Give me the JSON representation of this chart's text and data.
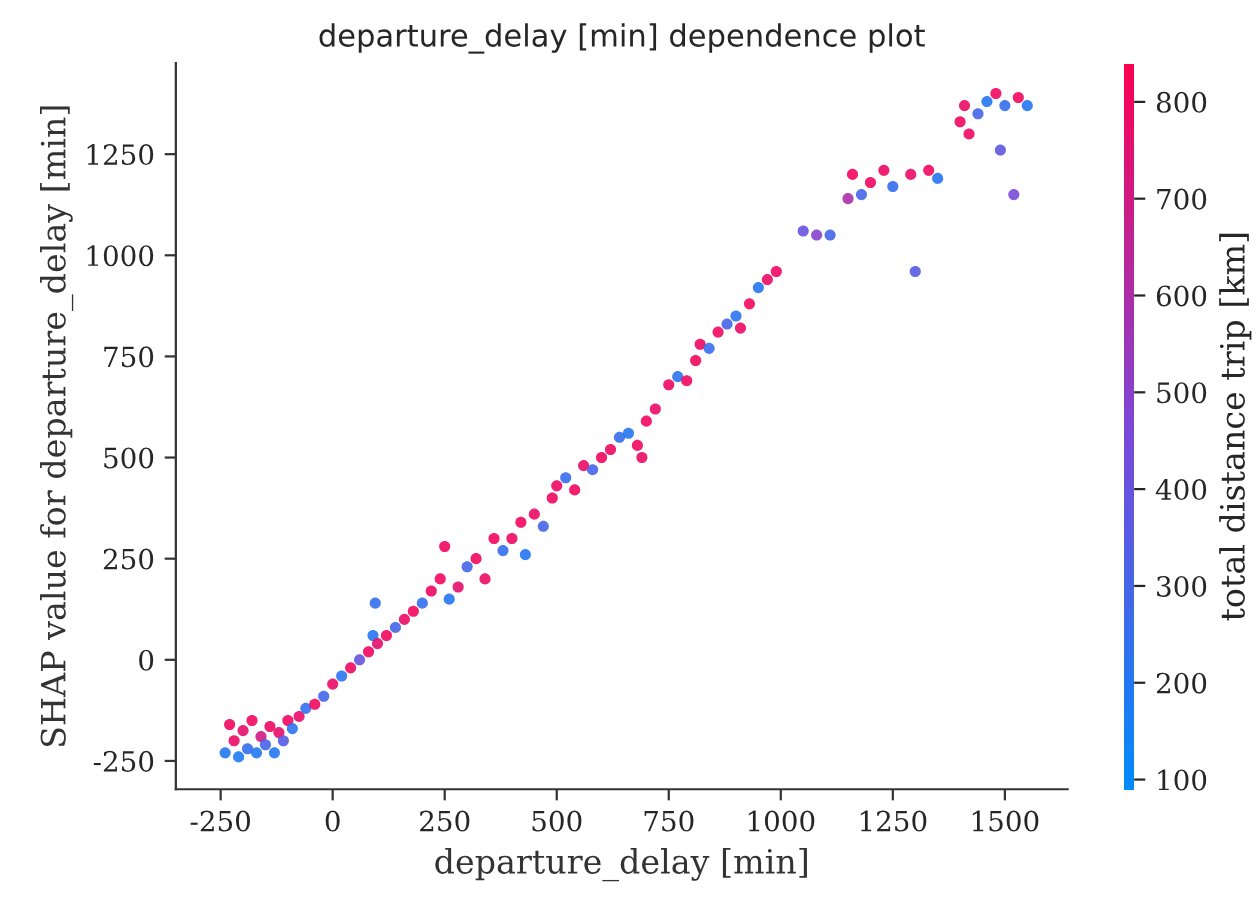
{
  "chart_data": {
    "type": "scatter",
    "title": "departure_delay [min] dependence plot",
    "xlabel": "departure_delay [min]",
    "ylabel": "SHAP value for departure_delay [min]",
    "clabel": "total distance trip [km]",
    "xlim": [
      -350,
      1640
    ],
    "ylim": [
      -320,
      1475
    ],
    "xticks": [
      -250,
      0,
      250,
      500,
      750,
      1000,
      1250,
      1500
    ],
    "yticks": [
      -250,
      0,
      250,
      500,
      750,
      1000,
      1250
    ],
    "clim": [
      90,
      840
    ],
    "cticks": [
      100,
      200,
      300,
      400,
      500,
      600,
      700,
      800
    ],
    "grid": false,
    "marker": "circle",
    "series": [
      {
        "x": [
          -240,
          -230,
          -220,
          -210,
          -200,
          -190,
          -180,
          -170,
          -160,
          -150,
          -140,
          -130,
          -120,
          -110,
          -100,
          -90,
          -75,
          -60,
          -40,
          -20,
          0,
          20,
          40,
          60,
          80,
          90,
          95,
          100,
          120,
          140,
          160,
          180,
          200,
          220,
          240,
          250,
          260,
          280,
          300,
          320,
          340,
          360,
          380,
          400,
          420,
          430,
          450,
          470,
          490,
          500,
          520,
          540,
          560,
          580,
          600,
          620,
          640,
          660,
          680,
          690,
          700,
          720,
          750,
          770,
          790,
          810,
          820,
          840,
          860,
          880,
          900,
          910,
          930,
          950,
          970,
          990,
          1050,
          1080,
          1110,
          1150,
          1160,
          1180,
          1200,
          1230,
          1250,
          1290,
          1300,
          1330,
          1350,
          1400,
          1410,
          1420,
          1440,
          1460,
          1480,
          1490,
          1500,
          1520,
          1530,
          1550
        ],
        "values": [
          -230,
          -160,
          -200,
          -240,
          -175,
          -220,
          -150,
          -230,
          -190,
          -210,
          -165,
          -230,
          -180,
          -200,
          -150,
          -170,
          -140,
          -120,
          -110,
          -90,
          -60,
          -40,
          -20,
          0,
          20,
          60,
          140,
          40,
          60,
          80,
          100,
          120,
          140,
          170,
          200,
          280,
          150,
          180,
          230,
          250,
          200,
          300,
          270,
          300,
          340,
          260,
          360,
          330,
          400,
          430,
          450,
          420,
          480,
          470,
          500,
          520,
          550,
          560,
          530,
          500,
          590,
          620,
          680,
          700,
          690,
          740,
          780,
          770,
          810,
          830,
          850,
          820,
          880,
          920,
          940,
          960,
          1060,
          1050,
          1050,
          1140,
          1200,
          1150,
          1180,
          1210,
          1170,
          1200,
          960,
          1210,
          1190,
          1330,
          1370,
          1300,
          1350,
          1380,
          1400,
          1260,
          1370,
          1150,
          1390,
          1370
        ],
        "cvalues": [
          200,
          800,
          780,
          180,
          760,
          250,
          800,
          190,
          700,
          300,
          790,
          200,
          780,
          350,
          800,
          220,
          780,
          250,
          800,
          300,
          780,
          220,
          790,
          400,
          800,
          200,
          250,
          760,
          800,
          300,
          780,
          800,
          250,
          790,
          800,
          800,
          200,
          760,
          300,
          800,
          780,
          800,
          250,
          790,
          800,
          200,
          780,
          300,
          800,
          790,
          250,
          800,
          780,
          300,
          800,
          790,
          250,
          200,
          800,
          780,
          800,
          780,
          790,
          220,
          800,
          800,
          790,
          250,
          800,
          300,
          220,
          780,
          800,
          200,
          780,
          800,
          400,
          500,
          300,
          600,
          800,
          300,
          800,
          790,
          250,
          780,
          350,
          800,
          200,
          800,
          780,
          790,
          300,
          200,
          800,
          380,
          250,
          450,
          800,
          200
        ]
      }
    ]
  }
}
